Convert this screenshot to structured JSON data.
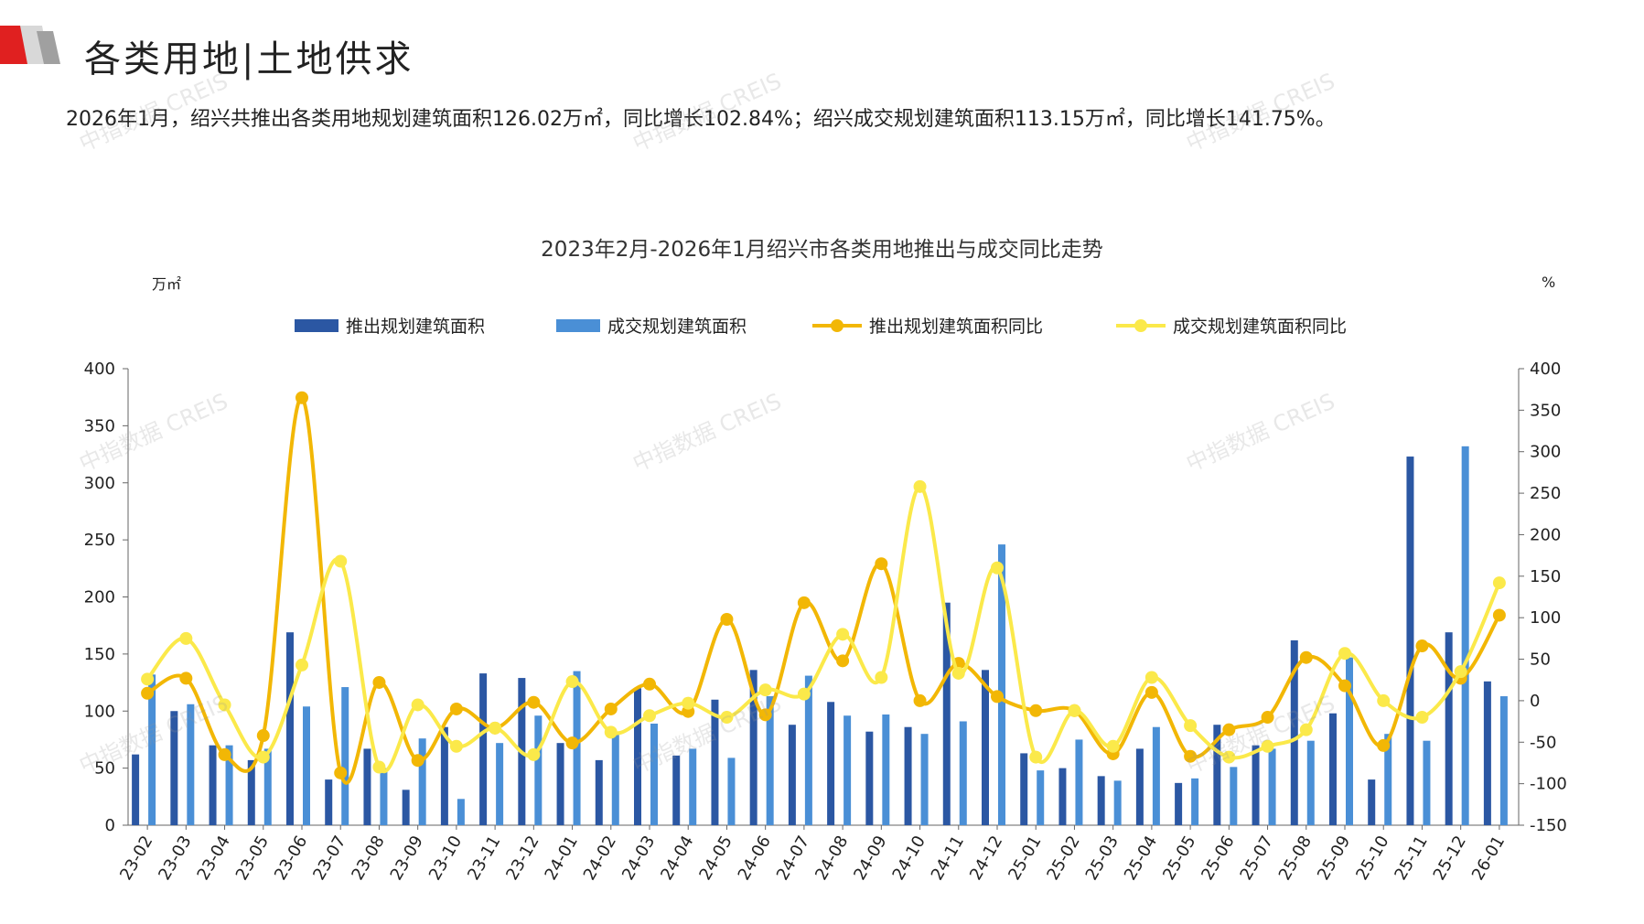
{
  "page": {
    "title": "各类用地|土地供求",
    "summary": "2026年1月，绍兴共推出各类用地规划建筑面积126.02万㎡，同比增长102.84%；绍兴成交规划建筑面积113.15万㎡，同比增长141.75%。",
    "watermark": "中指数据 CREIS"
  },
  "colors": {
    "accent_red": "#e02020",
    "supply_bar": "#2b57a3",
    "deal_bar": "#4a8fd6",
    "supply_line": "#f2b705",
    "deal_line": "#fbe94a"
  },
  "chart_data": {
    "type": "bar",
    "title": "2023年2月-2026年1月绍兴市各类用地推出与成交同比走势",
    "ylabel_left": "万㎡",
    "ylabel_right": "%",
    "ylim_left": [
      0,
      400
    ],
    "yticks_left": [
      0,
      50,
      100,
      150,
      200,
      250,
      300,
      350,
      400
    ],
    "ylim_right": [
      -150,
      400
    ],
    "yticks_right": [
      -150,
      -100,
      -50,
      0,
      50,
      100,
      150,
      200,
      250,
      300,
      350,
      400
    ],
    "legend_position": "top",
    "categories": [
      "23-02",
      "23-03",
      "23-04",
      "23-05",
      "23-06",
      "23-07",
      "23-08",
      "23-09",
      "23-10",
      "23-11",
      "23-12",
      "24-01",
      "24-02",
      "24-03",
      "24-04",
      "24-05",
      "24-06",
      "24-07",
      "24-08",
      "24-09",
      "24-10",
      "24-11",
      "24-12",
      "25-01",
      "25-02",
      "25-03",
      "25-04",
      "25-05",
      "25-06",
      "25-07",
      "25-08",
      "25-09",
      "25-10",
      "25-11",
      "25-12",
      "26-01"
    ],
    "series": [
      {
        "name": "推出规划建筑面积",
        "kind": "bar",
        "axis": "left",
        "values": [
          62,
          100,
          70,
          57,
          169,
          40,
          67,
          31,
          86,
          133,
          129,
          72,
          57,
          120,
          61,
          110,
          136,
          88,
          108,
          82,
          86,
          195,
          136,
          63,
          50,
          43,
          67,
          37,
          88,
          70,
          162,
          98,
          40,
          323,
          169,
          126
        ]
      },
      {
        "name": "成交规划建筑面积",
        "kind": "bar",
        "axis": "left",
        "values": [
          132,
          106,
          70,
          67,
          104,
          121,
          50,
          76,
          23,
          72,
          96,
          135,
          82,
          89,
          67,
          59,
          113,
          131,
          96,
          97,
          80,
          91,
          246,
          48,
          75,
          39,
          86,
          41,
          51,
          67,
          74,
          147,
          80,
          74,
          332,
          113
        ]
      },
      {
        "name": "推出规划建筑面积同比",
        "kind": "line",
        "axis": "right",
        "values": [
          9,
          27,
          -65,
          -42,
          365,
          -87,
          22,
          -72,
          -10,
          -33,
          -2,
          -51,
          -10,
          20,
          -13,
          98,
          -17,
          118,
          48,
          165,
          0,
          45,
          5,
          -12,
          -12,
          -64,
          10,
          -67,
          -35,
          -20,
          52,
          18,
          -54,
          66,
          27,
          103
        ]
      },
      {
        "name": "成交规划建筑面积同比",
        "kind": "line",
        "axis": "right",
        "values": [
          26,
          75,
          -5,
          -68,
          43,
          168,
          -80,
          -5,
          -55,
          -33,
          -65,
          23,
          -38,
          -18,
          -3,
          -20,
          13,
          8,
          80,
          28,
          258,
          33,
          160,
          -68,
          -12,
          -55,
          28,
          -30,
          -68,
          -55,
          -35,
          57,
          0,
          -20,
          35,
          142
        ]
      }
    ]
  }
}
